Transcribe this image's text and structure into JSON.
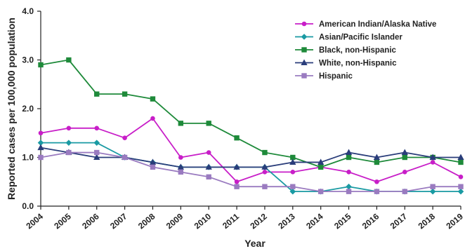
{
  "chart_data": {
    "type": "line",
    "xlabel": "Year",
    "ylabel": "Reported cases per 100,000 population",
    "ylim": [
      0,
      4.0
    ],
    "y_ticks": [
      "0.0",
      "1.0",
      "2.0",
      "3.0",
      "4.0"
    ],
    "x": [
      "2004",
      "2005",
      "2006",
      "2007",
      "2008",
      "2009",
      "2010",
      "2011",
      "2012",
      "2013",
      "2014",
      "2015",
      "2016",
      "2017",
      "2018",
      "2019"
    ],
    "grid": false,
    "legend_position": "top-right",
    "series": [
      {
        "name": "American Indian/Alaska Native",
        "color": "#c81ec8",
        "marker": "circle",
        "values": [
          1.5,
          1.6,
          1.6,
          1.4,
          1.8,
          1.0,
          1.1,
          0.5,
          0.7,
          0.7,
          0.8,
          0.7,
          0.5,
          0.7,
          0.9,
          0.6
        ]
      },
      {
        "name": "Asian/Pacific Islander",
        "color": "#1a9aa3",
        "marker": "diamond",
        "values": [
          1.3,
          1.3,
          1.3,
          1.0,
          0.9,
          0.8,
          0.8,
          0.8,
          0.8,
          0.3,
          0.3,
          0.4,
          0.3,
          0.3,
          0.3,
          0.3
        ]
      },
      {
        "name": "Black, non-Hispanic",
        "color": "#1e8a3a",
        "marker": "square",
        "values": [
          2.9,
          3.0,
          2.3,
          2.3,
          2.2,
          1.7,
          1.7,
          1.4,
          1.1,
          1.0,
          0.8,
          1.0,
          0.9,
          1.0,
          1.0,
          0.9
        ]
      },
      {
        "name": "White, non-Hispanic",
        "color": "#2a3d7a",
        "marker": "triangle",
        "values": [
          1.2,
          1.1,
          1.0,
          1.0,
          0.9,
          0.8,
          0.8,
          0.8,
          0.8,
          0.9,
          0.9,
          1.1,
          1.0,
          1.1,
          1.0,
          1.0
        ]
      },
      {
        "name": "Hispanic",
        "color": "#9a7bc0",
        "marker": "square",
        "values": [
          1.0,
          1.1,
          1.1,
          1.0,
          0.8,
          0.7,
          0.6,
          0.4,
          0.4,
          0.4,
          0.3,
          0.3,
          0.3,
          0.3,
          0.4,
          0.4
        ]
      }
    ]
  }
}
